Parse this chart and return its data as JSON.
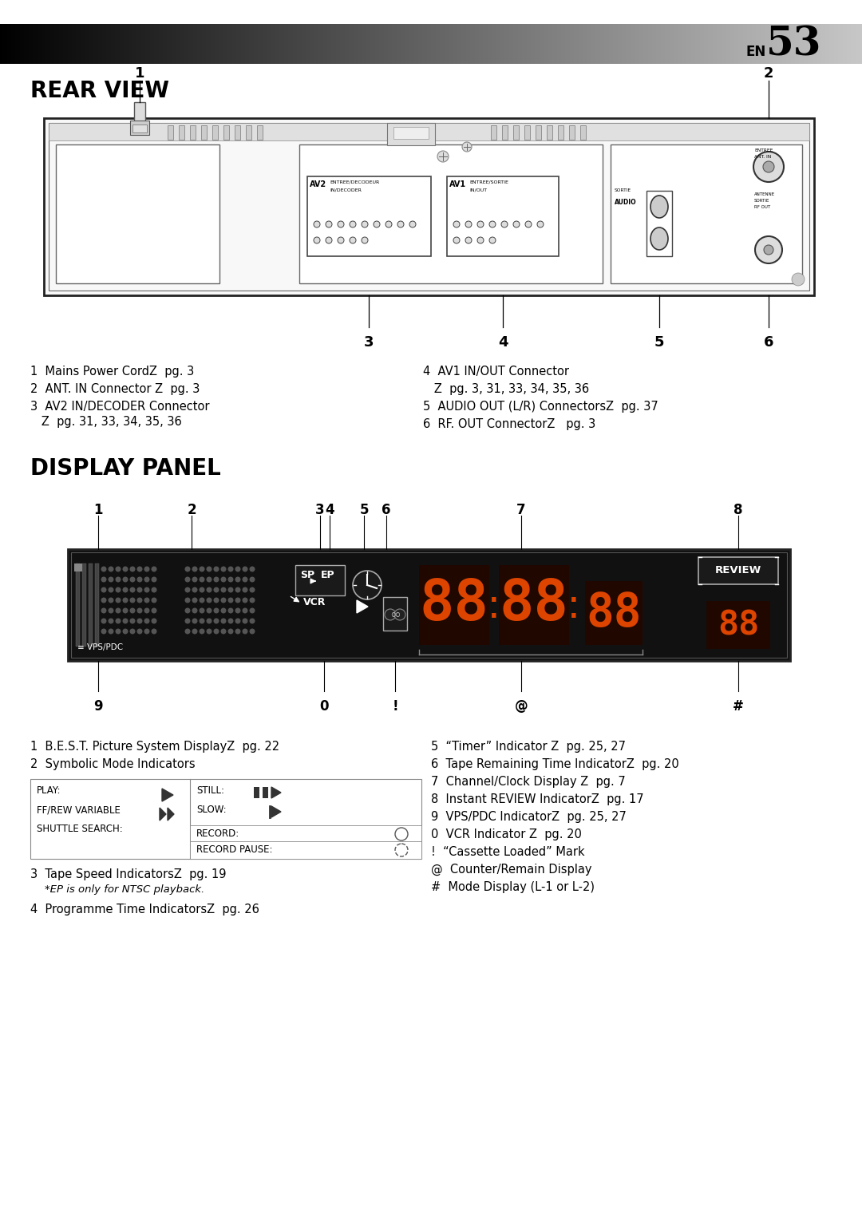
{
  "page_num": "53",
  "page_label": "EN",
  "bg_color": "#ffffff",
  "section1_title": "REAR VIEW",
  "section2_title": "DISPLAY PANEL",
  "arrow_char": "⇗",
  "left_arrow": "→",
  "rear_notes_left": [
    [
      "1  Mains Power Cord",
      "Z",
      "  pg. 3"
    ],
    [
      "2  ANT. IN Connector ",
      "Z",
      " pg. 3"
    ],
    [
      "3  AV2 IN/DECODER Connector",
      "",
      ""
    ],
    [
      "   ",
      "Z",
      "  pg. 31, 33, 34, 35, 36"
    ]
  ],
  "rear_notes_right": [
    [
      "4  AV1 IN/OUT Connector",
      "",
      ""
    ],
    [
      "   ",
      "Z",
      "  pg. 3, 31, 33, 34, 35, 36"
    ],
    [
      "5  AUDIO OUT (L/R) Connectors",
      "Z",
      "  pg. 37"
    ],
    [
      "6  RF. OUT Connector",
      "Z",
      "   pg. 3"
    ]
  ]
}
